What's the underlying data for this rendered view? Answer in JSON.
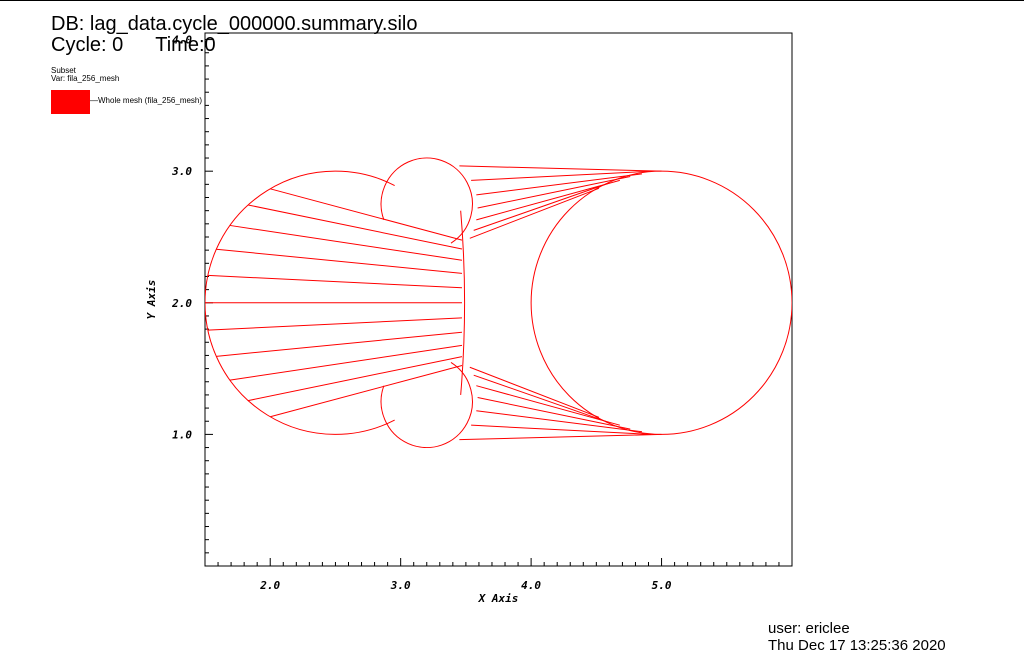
{
  "header": {
    "db_title": "DB: lag_data.cycle_000000.summary.silo",
    "cycle": "Cycle: 0",
    "time": "Time:0"
  },
  "legend": {
    "subset_label": "Subset",
    "var_label": "Var: fila_256_mesh",
    "entry": "Whole mesh (fila_256_mesh)",
    "swatch_color": "#ff0000"
  },
  "footer": {
    "user": "user: ericlee",
    "date": "Thu Dec 17 13:25:36 2020"
  },
  "chart_data": {
    "type": "mesh",
    "xlabel": "X Axis",
    "ylabel": "Y Axis",
    "xlim": [
      1.5,
      6.0
    ],
    "ylim": [
      0.0,
      4.05
    ],
    "xticks": [
      2.0,
      3.0,
      4.0,
      5.0
    ],
    "xtick_labels": [
      "2.0",
      "3.0",
      "4.0",
      "5.0"
    ],
    "yticks": [
      1.0,
      2.0,
      3.0,
      4.0
    ],
    "ytick_labels": [
      "1.0",
      "2.0",
      "3.0",
      "4.0"
    ],
    "color": "#ff0000",
    "left_body": {
      "center": [
        2.5,
        2.0
      ],
      "radius": 1.0
    },
    "bumps": [
      {
        "center": [
          3.2,
          2.75
        ],
        "radius": 0.35
      },
      {
        "center": [
          3.2,
          1.25
        ],
        "radius": 0.35
      }
    ],
    "right_circle": {
      "center": [
        5.0,
        2.0
      ],
      "radius": 1.0
    },
    "inner_edge": {
      "x": 3.5,
      "y_top": 2.55,
      "y_bottom": 1.45
    },
    "fan_left": {
      "count": 11,
      "angle_from_deg": 120,
      "angle_to_deg": 240
    },
    "fan_top": [
      {
        "from": [
          3.45,
          3.04
        ],
        "to": [
          5.0,
          3.0
        ]
      },
      {
        "from": [
          3.54,
          2.93
        ],
        "to": [
          4.92,
          3.0
        ]
      },
      {
        "from": [
          3.58,
          2.82
        ],
        "to": [
          4.85,
          2.98
        ]
      },
      {
        "from": [
          3.59,
          2.72
        ],
        "to": [
          4.76,
          2.96
        ]
      },
      {
        "from": [
          3.58,
          2.63
        ],
        "to": [
          4.68,
          2.93
        ]
      },
      {
        "from": [
          3.56,
          2.55
        ],
        "to": [
          4.6,
          2.91
        ]
      },
      {
        "from": [
          3.53,
          2.49
        ],
        "to": [
          4.52,
          2.87
        ]
      }
    ],
    "fan_bottom": [
      {
        "from": [
          3.45,
          0.96
        ],
        "to": [
          5.0,
          1.0
        ]
      },
      {
        "from": [
          3.54,
          1.07
        ],
        "to": [
          4.92,
          1.0
        ]
      },
      {
        "from": [
          3.58,
          1.18
        ],
        "to": [
          4.85,
          1.02
        ]
      },
      {
        "from": [
          3.59,
          1.28
        ],
        "to": [
          4.76,
          1.04
        ]
      },
      {
        "from": [
          3.58,
          1.37
        ],
        "to": [
          4.68,
          1.07
        ]
      },
      {
        "from": [
          3.56,
          1.45
        ],
        "to": [
          4.6,
          1.09
        ]
      },
      {
        "from": [
          3.53,
          1.51
        ],
        "to": [
          4.52,
          1.13
        ]
      }
    ]
  }
}
